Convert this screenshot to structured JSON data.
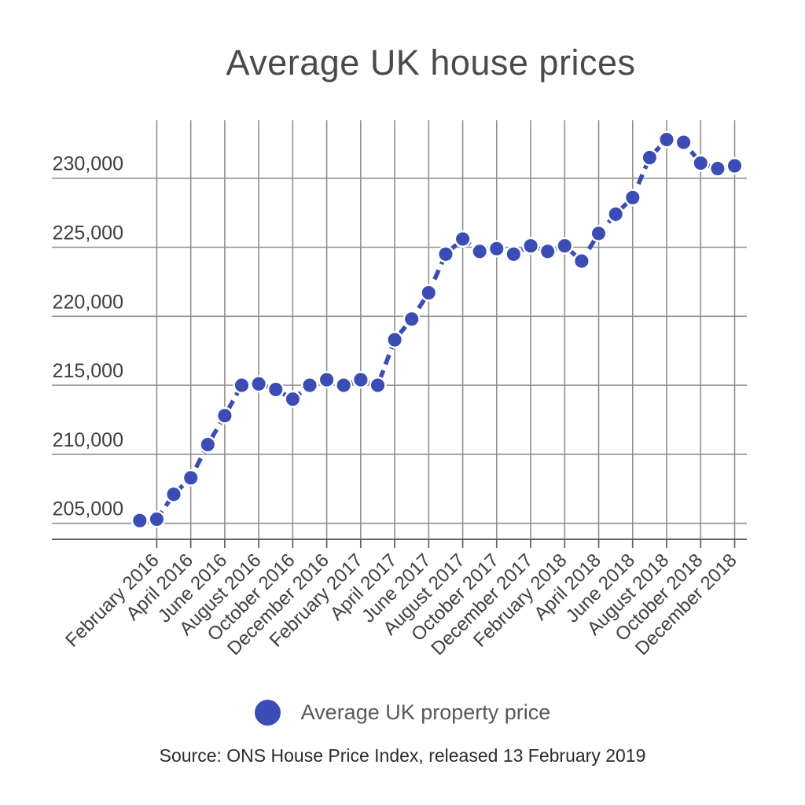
{
  "page": {
    "title": "Average UK house prices",
    "legend": {
      "label": "Average UK property price"
    },
    "source": "Source: ONS House Price Index, released 13 February 2019"
  },
  "colors": {
    "accent_blue": "#3b4cb4",
    "marker_halo": "#ffffff",
    "grid": "#8f8f8f",
    "axis": "#666666",
    "title_text": "#4a4a4a",
    "tick_text": "#3f3f3f",
    "legend_text": "#57585a",
    "source_text": "#2b2b2b"
  },
  "chart_data": {
    "type": "line",
    "title": "Average UK house prices",
    "xlabel": "",
    "ylabel": "",
    "line_style": "dashed",
    "marker": "circle",
    "grid": true,
    "legend_position": "bottom",
    "x": [
      "January 2016",
      "February 2016",
      "March 2016",
      "April 2016",
      "May 2016",
      "June 2016",
      "July 2016",
      "August 2016",
      "September 2016",
      "October 2016",
      "November 2016",
      "December 2016",
      "January 2017",
      "February 2017",
      "March 2017",
      "April 2017",
      "May 2017",
      "June 2017",
      "July 2017",
      "August 2017",
      "September 2017",
      "October 2017",
      "November 2017",
      "December 2017",
      "January 2018",
      "February 2018",
      "March 2018",
      "April 2018",
      "May 2018",
      "June 2018",
      "July 2018",
      "August 2018",
      "September 2018",
      "October 2018",
      "November 2018",
      "December 2018"
    ],
    "x_tick_labels": [
      "February 2016",
      "April 2016",
      "June 2016",
      "August 2016",
      "October 2016",
      "December 2016",
      "February 2017",
      "April 2017",
      "June 2017",
      "August 2017",
      "October 2017",
      "December 2017",
      "February 2018",
      "April 2018",
      "June 2018",
      "August 2018",
      "October 2018",
      "December 2018"
    ],
    "series": [
      {
        "name": "Average UK property price",
        "values": [
          205200,
          205300,
          207100,
          208300,
          210700,
          212800,
          215000,
          215100,
          214700,
          214000,
          215000,
          215400,
          215000,
          215400,
          215000,
          218300,
          219800,
          221700,
          224500,
          225600,
          224700,
          224900,
          224500,
          225100,
          224700,
          225100,
          224000,
          226000,
          227400,
          228600,
          231500,
          232800,
          232600,
          231100,
          230700,
          230900
        ]
      }
    ],
    "y_ticks": [
      205000,
      210000,
      215000,
      220000,
      225000,
      230000
    ],
    "y_tick_labels": [
      "205,000",
      "210,000",
      "215,000",
      "220,000",
      "225,000",
      "230,000"
    ],
    "ylim": [
      203900,
      234200
    ]
  }
}
